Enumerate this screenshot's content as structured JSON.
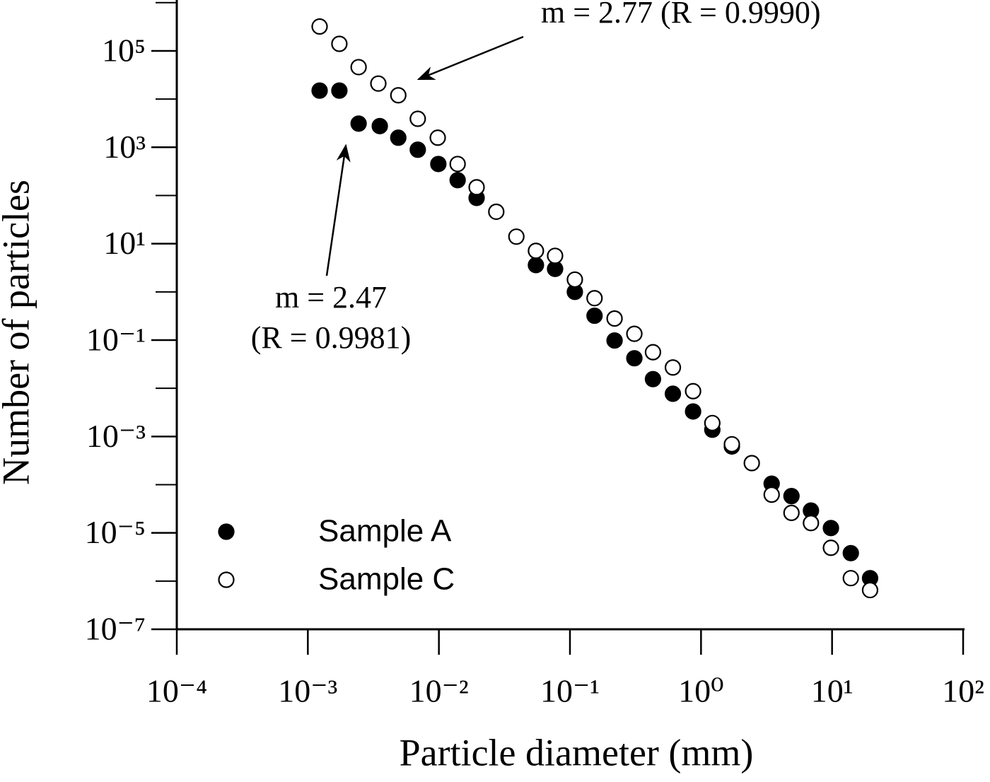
{
  "chart_data": {
    "type": "scatter",
    "x_label": "Particle diameter (mm)",
    "y_label": "Number of particles",
    "xscale": "log",
    "yscale": "log",
    "xlim": [
      0.0001,
      100
    ],
    "ylim": [
      1e-07,
      1000000
    ],
    "xticks": [
      {
        "value": 0.0001,
        "label": "10⁻⁴"
      },
      {
        "value": 0.001,
        "label": "10⁻³"
      },
      {
        "value": 0.01,
        "label": "10⁻²"
      },
      {
        "value": 0.1,
        "label": "10⁻¹"
      },
      {
        "value": 1,
        "label": "10⁰"
      },
      {
        "value": 10,
        "label": "10¹"
      },
      {
        "value": 100,
        "label": "10²"
      }
    ],
    "yticks": [
      {
        "value": 1e-07,
        "label": "10⁻⁷"
      },
      {
        "value": 1e-05,
        "label": "10⁻⁵"
      },
      {
        "value": 0.001,
        "label": "10⁻³"
      },
      {
        "value": 0.1,
        "label": "10⁻¹"
      },
      {
        "value": 10,
        "label": "10¹"
      },
      {
        "value": 1000,
        "label": "10³"
      },
      {
        "value": 100000,
        "label": "10⁵"
      }
    ],
    "yticks_minor": [
      1e-06,
      0.0001,
      0.01,
      1,
      100,
      10000,
      1000000
    ],
    "legend": "lower left",
    "series": [
      {
        "name": "Sample A",
        "color": "#000000",
        "filled": true,
        "x": [
          0.00123,
          0.00174,
          0.00244,
          0.00354,
          0.0049,
          0.0069,
          0.0099,
          0.0139,
          0.0194,
          0.055,
          0.077,
          0.109,
          0.154,
          0.219,
          0.31,
          0.43,
          0.61,
          0.87,
          1.22,
          1.72,
          3.46,
          4.9,
          6.9,
          9.8,
          13.9,
          19.5
        ],
        "values": [
          15000,
          15000,
          3100,
          2750,
          1580,
          890,
          450,
          208,
          89,
          3.6,
          3.0,
          1.0,
          0.32,
          0.098,
          0.042,
          0.0155,
          0.0077,
          0.0033,
          0.00138,
          0.00062,
          0.000105,
          5.8e-05,
          2.9e-05,
          1.26e-05,
          3.8e-06,
          1.15e-06
        ]
      },
      {
        "name": "Sample C",
        "color": "#000000",
        "filled": false,
        "x": [
          0.00123,
          0.00174,
          0.00244,
          0.00345,
          0.0049,
          0.0069,
          0.0098,
          0.0139,
          0.0194,
          0.0274,
          0.039,
          0.055,
          0.077,
          0.109,
          0.154,
          0.219,
          0.31,
          0.43,
          0.61,
          0.87,
          1.22,
          1.72,
          2.44,
          3.46,
          4.9,
          6.9,
          9.8,
          13.9,
          19.5
        ],
        "values": [
          320000,
          140000,
          46000,
          21000,
          12000,
          3900,
          1580,
          450,
          148,
          46,
          14,
          7.1,
          5.6,
          1.8,
          0.74,
          0.28,
          0.135,
          0.056,
          0.027,
          0.0087,
          0.0019,
          0.00069,
          0.00028,
          6.2e-05,
          2.6e-05,
          1.6e-05,
          4.9e-06,
          1.15e-06,
          6.5e-07
        ]
      }
    ],
    "annotations": [
      {
        "lines": [
          "m = 2.77 (R = 0.9990)"
        ]
      },
      {
        "lines": [
          "m = 2.47",
          "(R = 0.9981)"
        ]
      }
    ]
  }
}
